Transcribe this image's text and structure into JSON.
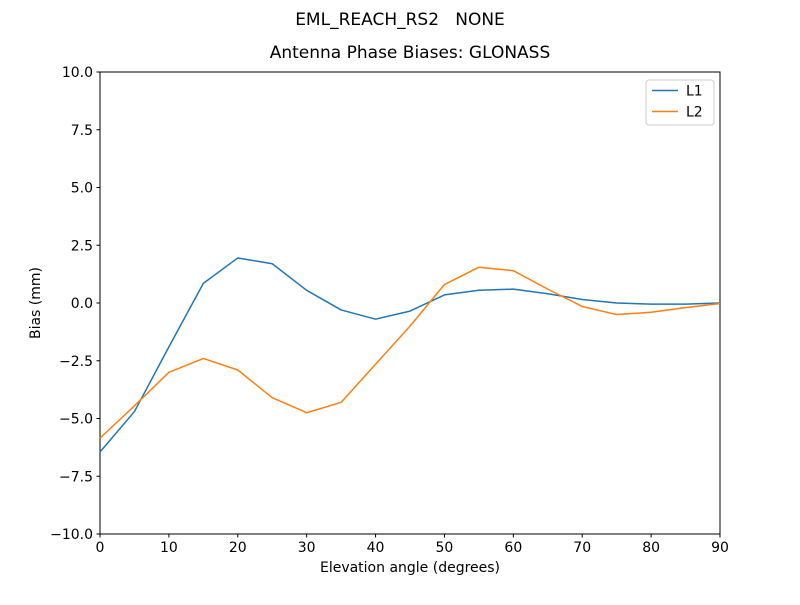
{
  "chart_data": {
    "type": "line",
    "title": "EML_REACH_RS2   NONE",
    "subtitle": "Antenna Phase Biases: GLONASS",
    "xlabel": "Elevation angle (degrees)",
    "ylabel": "Bias (mm)",
    "xlim": [
      0,
      90
    ],
    "ylim": [
      -10,
      10
    ],
    "grid": false,
    "line_width": 1.5,
    "background_color": "#ffffff",
    "spine_color": "#000000",
    "xtick_values": [
      0,
      10,
      20,
      30,
      40,
      50,
      60,
      70,
      80,
      90
    ],
    "xtick_labels": [
      "0",
      "10",
      "20",
      "30",
      "40",
      "50",
      "60",
      "70",
      "80",
      "90"
    ],
    "ytick_values": [
      -10,
      -7.5,
      -5,
      -2.5,
      0,
      2.5,
      5,
      7.5,
      10
    ],
    "ytick_labels": [
      "−10.0",
      "−7.5",
      "−5.0",
      "−2.5",
      "0.0",
      "2.5",
      "5.0",
      "7.5",
      "10.0"
    ],
    "x": [
      0,
      5,
      10,
      15,
      20,
      25,
      30,
      35,
      40,
      45,
      50,
      55,
      60,
      65,
      70,
      75,
      80,
      85,
      90
    ],
    "series": [
      {
        "name": "L1",
        "color": "#1f77b4",
        "values": [
          -6.45,
          -4.7,
          -1.9,
          0.85,
          1.95,
          1.7,
          0.55,
          -0.3,
          -0.7,
          -0.35,
          0.35,
          0.55,
          0.6,
          0.4,
          0.15,
          0.0,
          -0.05,
          -0.05,
          0.0
        ]
      },
      {
        "name": "L2",
        "color": "#ff7f0e",
        "values": [
          -5.85,
          -4.45,
          -3.0,
          -2.4,
          -2.9,
          -4.1,
          -4.75,
          -4.3,
          -2.65,
          -1.0,
          0.8,
          1.55,
          1.4,
          0.6,
          -0.15,
          -0.5,
          -0.4,
          -0.2,
          -0.02
        ]
      }
    ],
    "legend": {
      "position": "upper right",
      "entries": [
        "L1",
        "L2"
      ],
      "border_color": "#cccccc"
    }
  }
}
